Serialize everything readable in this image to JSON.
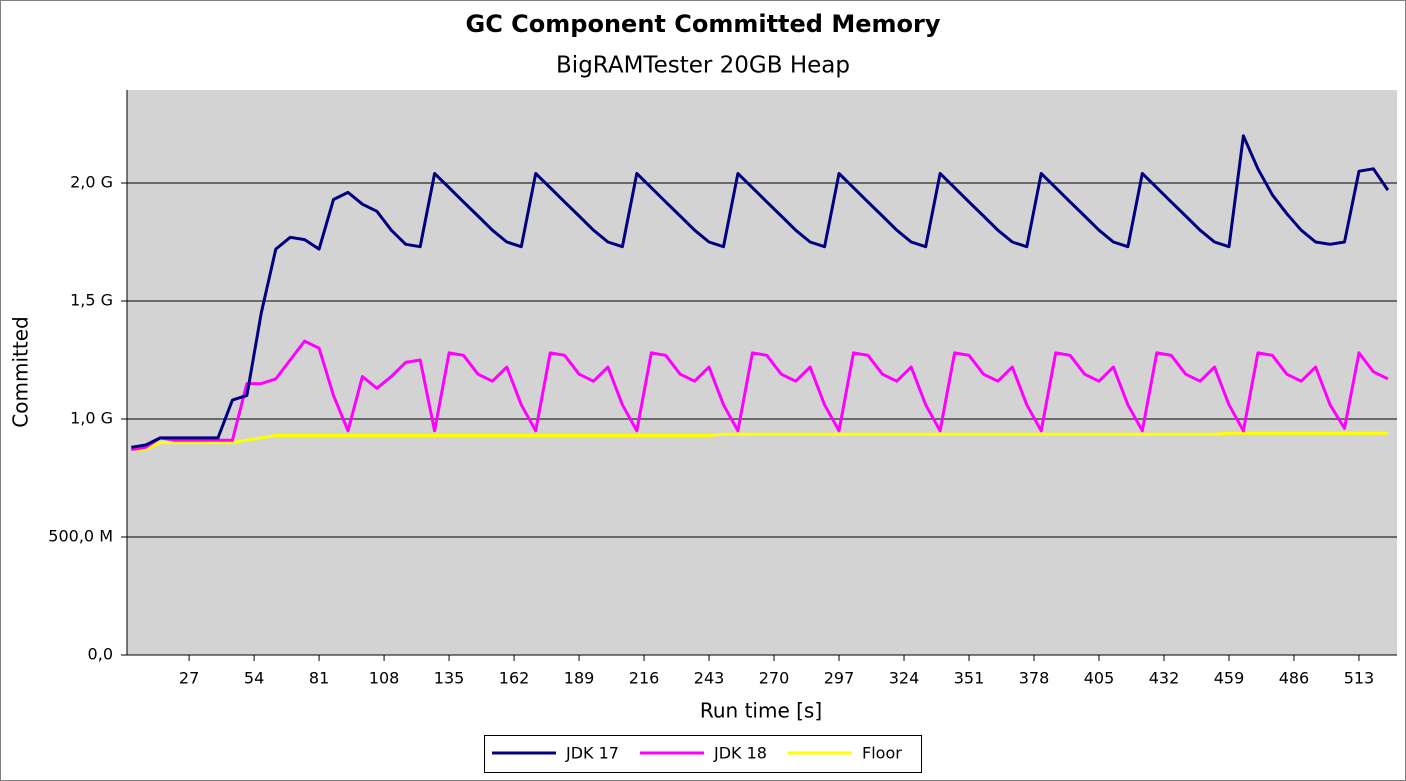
{
  "chart_data": {
    "type": "line",
    "title": "GC Component Committed Memory",
    "subtitle": "BigRAMTester 20GB Heap",
    "x_label": "Run time [s]",
    "y_label": "Committed",
    "xlim": [
      1.2,
      528.8
    ],
    "ylim": [
      0,
      2.394
    ],
    "xticks": [
      27,
      54,
      81,
      108,
      135,
      162,
      189,
      216,
      243,
      270,
      297,
      324,
      351,
      378,
      405,
      432,
      459,
      486,
      513
    ],
    "yticks": [
      {
        "value": 0,
        "label": "0,0"
      },
      {
        "value": 0.5,
        "label": "500,0 M"
      },
      {
        "value": 1,
        "label": "1,0 G"
      },
      {
        "value": 1.5,
        "label": "1,5 G"
      },
      {
        "value": 2,
        "label": "2,0 G"
      }
    ],
    "grid": true,
    "legend": "bottom",
    "x": [
      3,
      9,
      15,
      21,
      27,
      33,
      39,
      45,
      51,
      57,
      63,
      69,
      75,
      81,
      87,
      93,
      99,
      105,
      111,
      117,
      123,
      129,
      135,
      141,
      147,
      153,
      159,
      165,
      171,
      177,
      183,
      189,
      195,
      201,
      207,
      213,
      219,
      225,
      231,
      237,
      243,
      249,
      255,
      261,
      267,
      273,
      279,
      285,
      291,
      297,
      303,
      309,
      315,
      321,
      327,
      333,
      339,
      345,
      351,
      357,
      363,
      369,
      375,
      381,
      387,
      393,
      399,
      405,
      411,
      417,
      423,
      429,
      435,
      441,
      447,
      453,
      459,
      465,
      471,
      477,
      483,
      489,
      495,
      501,
      507,
      513,
      519,
      525
    ],
    "series": [
      {
        "name": "JDK 17",
        "color": "#000080",
        "values": [
          0.88,
          0.89,
          0.92,
          0.92,
          0.92,
          0.92,
          0.92,
          1.08,
          1.1,
          1.45,
          1.72,
          1.77,
          1.76,
          1.72,
          1.93,
          1.96,
          1.91,
          1.88,
          1.8,
          1.74,
          1.73,
          2.04,
          1.98,
          1.92,
          1.86,
          1.8,
          1.75,
          1.73,
          2.04,
          1.98,
          1.92,
          1.86,
          1.8,
          1.75,
          1.73,
          2.04,
          1.98,
          1.92,
          1.86,
          1.8,
          1.75,
          1.73,
          2.04,
          1.98,
          1.92,
          1.86,
          1.8,
          1.75,
          1.73,
          2.04,
          1.98,
          1.92,
          1.86,
          1.8,
          1.75,
          1.73,
          2.04,
          1.98,
          1.92,
          1.86,
          1.8,
          1.75,
          1.73,
          2.04,
          1.98,
          1.92,
          1.86,
          1.8,
          1.75,
          1.73,
          2.04,
          1.98,
          1.92,
          1.86,
          1.8,
          1.75,
          1.73,
          2.2,
          2.06,
          1.95,
          1.87,
          1.8,
          1.75,
          1.74,
          1.75,
          2.05,
          2.06,
          1.97
        ]
      },
      {
        "name": "JDK 18",
        "color": "#ff00ff",
        "values": [
          0.87,
          0.88,
          0.92,
          0.91,
          0.91,
          0.91,
          0.91,
          0.91,
          1.15,
          1.15,
          1.17,
          1.25,
          1.33,
          1.3,
          1.1,
          0.95,
          1.18,
          1.13,
          1.18,
          1.24,
          1.25,
          0.95,
          1.28,
          1.27,
          1.19,
          1.16,
          1.22,
          1.06,
          0.95,
          1.28,
          1.27,
          1.19,
          1.16,
          1.22,
          1.06,
          0.95,
          1.28,
          1.27,
          1.19,
          1.16,
          1.22,
          1.06,
          0.95,
          1.28,
          1.27,
          1.19,
          1.16,
          1.22,
          1.06,
          0.95,
          1.28,
          1.27,
          1.19,
          1.16,
          1.22,
          1.06,
          0.95,
          1.28,
          1.27,
          1.19,
          1.16,
          1.22,
          1.06,
          0.95,
          1.28,
          1.27,
          1.19,
          1.16,
          1.22,
          1.06,
          0.95,
          1.28,
          1.27,
          1.19,
          1.16,
          1.22,
          1.06,
          0.95,
          1.28,
          1.27,
          1.19,
          1.16,
          1.22,
          1.06,
          0.96,
          1.28,
          1.2,
          1.17
        ]
      },
      {
        "name": "Floor",
        "color": "#ffff00",
        "values": [
          0.87,
          0.87,
          0.9,
          0.9,
          0.9,
          0.9,
          0.9,
          0.9,
          0.91,
          0.92,
          0.93,
          0.93,
          0.93,
          0.93,
          0.93,
          0.93,
          0.93,
          0.93,
          0.93,
          0.93,
          0.93,
          0.93,
          0.93,
          0.93,
          0.93,
          0.93,
          0.93,
          0.93,
          0.93,
          0.93,
          0.93,
          0.93,
          0.93,
          0.93,
          0.93,
          0.93,
          0.93,
          0.93,
          0.93,
          0.93,
          0.93,
          0.935,
          0.935,
          0.935,
          0.935,
          0.935,
          0.935,
          0.935,
          0.935,
          0.935,
          0.935,
          0.935,
          0.935,
          0.935,
          0.935,
          0.935,
          0.935,
          0.935,
          0.935,
          0.935,
          0.935,
          0.935,
          0.935,
          0.935,
          0.935,
          0.935,
          0.935,
          0.935,
          0.935,
          0.935,
          0.935,
          0.935,
          0.935,
          0.935,
          0.935,
          0.935,
          0.94,
          0.94,
          0.94,
          0.94,
          0.94,
          0.94,
          0.94,
          0.94,
          0.94,
          0.94,
          0.94,
          0.94
        ]
      }
    ]
  }
}
